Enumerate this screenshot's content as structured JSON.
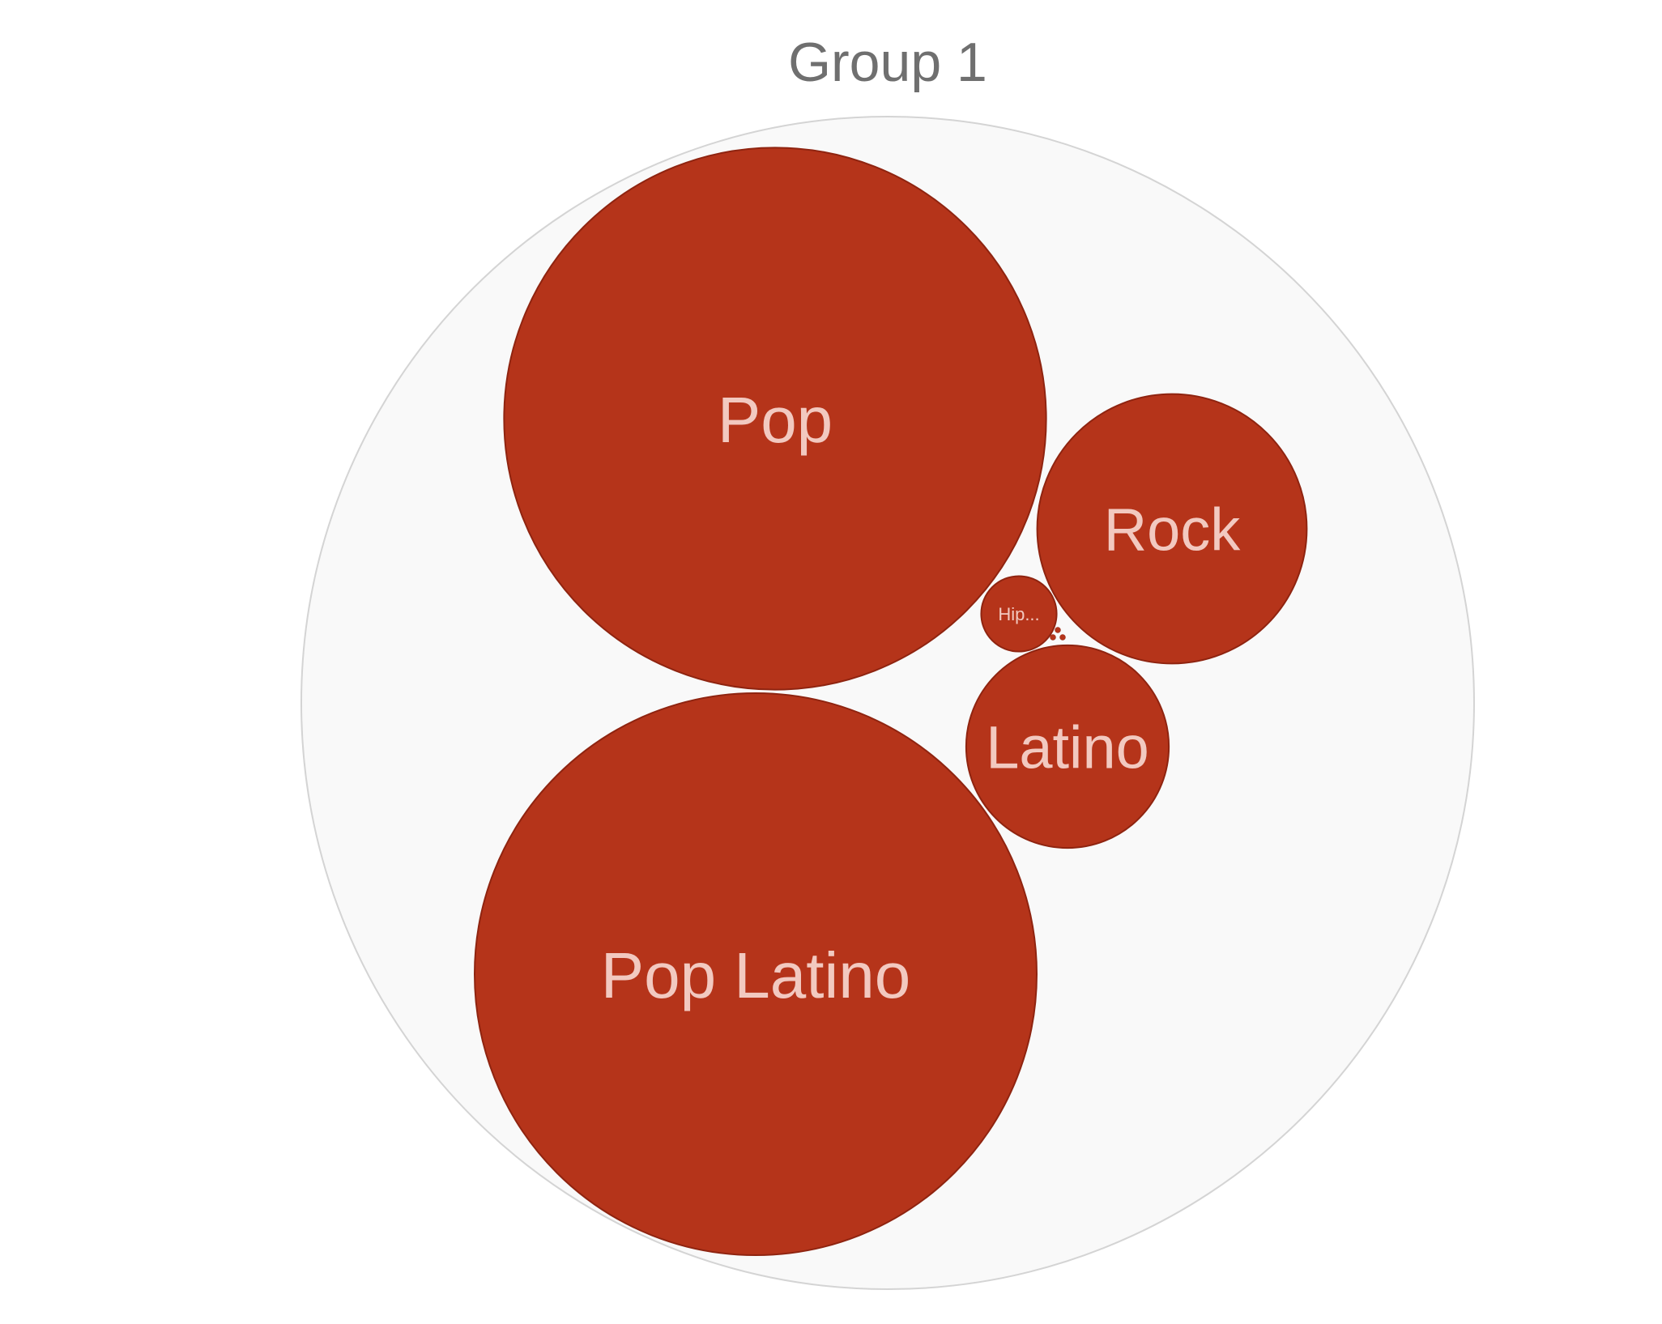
{
  "chart_data": {
    "type": "bubble-pack",
    "title": "Group 1",
    "colors": {
      "bubble": "#b5341a",
      "bubble_stroke": "#8f2410",
      "group_fill": "#f9f9f9",
      "group_stroke": "#d4d4d4",
      "label": "#f2c9c0"
    },
    "groups": [
      {
        "name": "Group 1",
        "bubbles": [
          {
            "label": "Pop Latino",
            "value": 100
          },
          {
            "label": "Pop",
            "value": 93
          },
          {
            "label": "Rock",
            "value": 23
          },
          {
            "label": "Latino",
            "value": 13
          },
          {
            "label": "Hip...",
            "value": 1.8
          },
          {
            "label": "",
            "value": 0.01
          },
          {
            "label": "",
            "value": 0.01
          },
          {
            "label": "",
            "value": 0.01
          }
        ]
      }
    ]
  }
}
